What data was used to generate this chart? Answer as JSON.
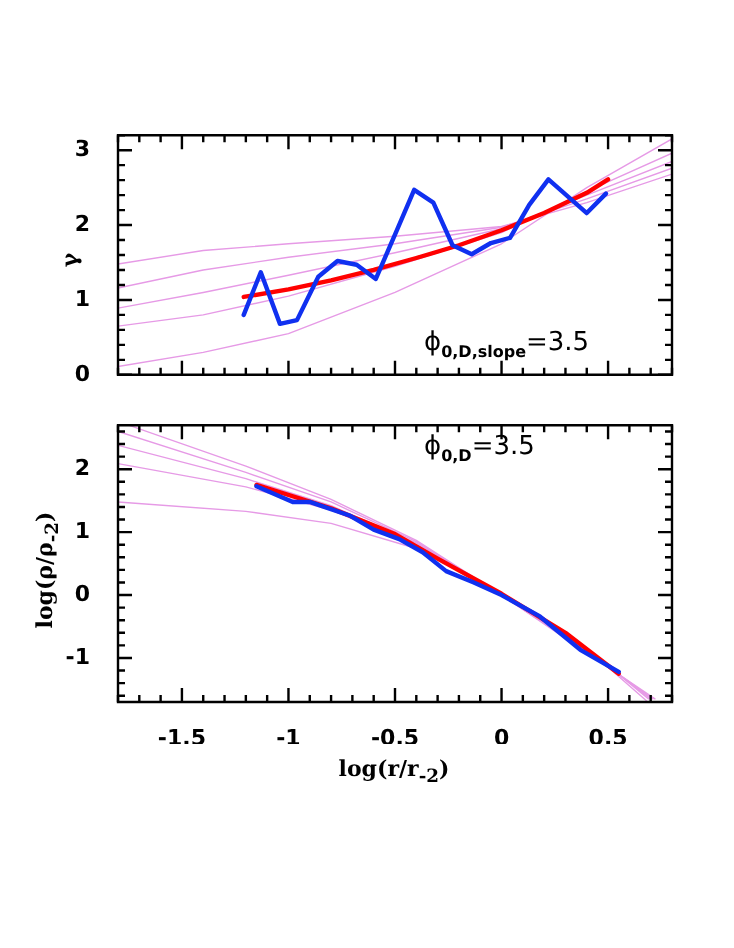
{
  "chart_data": [
    {
      "type": "line",
      "ylabel": "γ",
      "annotations": [
        "ϕ$_{0,D,slope}$=3.5"
      ],
      "xlim": [
        -1.8,
        0.8
      ],
      "ylim": [
        0,
        3.2
      ],
      "tick_labels": "y",
      "xticks": [
        {
          "value": -1.8,
          "label": null
        },
        {
          "value": -1.7,
          "label": null
        },
        {
          "value": -1.6,
          "label": null
        },
        {
          "value": -1.5,
          "label": null
        },
        {
          "value": -1.4,
          "label": null
        },
        {
          "value": -1.3,
          "label": null
        },
        {
          "value": -1.2,
          "label": null
        },
        {
          "value": -1.1,
          "label": null
        },
        {
          "value": -1,
          "label": null
        },
        {
          "value": -0.9,
          "label": null
        },
        {
          "value": -0.8,
          "label": null
        },
        {
          "value": -0.7,
          "label": null
        },
        {
          "value": -0.6,
          "label": null
        },
        {
          "value": -0.5,
          "label": null
        },
        {
          "value": -0.4,
          "label": null
        },
        {
          "value": -0.3,
          "label": null
        },
        {
          "value": -0.2,
          "label": null
        },
        {
          "value": -0.1,
          "label": null
        },
        {
          "value": 0,
          "label": null
        },
        {
          "value": 0.1,
          "label": null
        },
        {
          "value": 0.2,
          "label": null
        },
        {
          "value": 0.3,
          "label": null
        },
        {
          "value": 0.4,
          "label": null
        },
        {
          "value": 0.5,
          "label": null
        },
        {
          "value": 0.6,
          "label": null
        },
        {
          "value": 0.7,
          "label": null
        },
        {
          "value": 0.8,
          "label": null
        }
      ],
      "yticks": [
        0,
        {
          "value": 0.2,
          "label": null
        },
        {
          "value": 0.4,
          "label": null
        },
        {
          "value": 0.6,
          "label": null
        },
        {
          "value": 0.8,
          "label": null
        },
        1,
        {
          "value": 1.2,
          "label": null
        },
        {
          "value": 1.4,
          "label": null
        },
        {
          "value": 1.6,
          "label": null
        },
        {
          "value": 1.8,
          "label": null
        },
        2,
        {
          "value": 2.2,
          "label": null
        },
        {
          "value": 2.4,
          "label": null
        },
        {
          "value": 2.6,
          "label": null
        },
        {
          "value": 2.8,
          "label": null
        },
        3,
        {
          "value": 3.2,
          "label": null
        }
      ],
      "series": [
        {
          "color": "#e69ae6",
          "x": [
            -1.8,
            -1.4,
            -1,
            -0.5,
            0,
            0.4,
            0.8
          ],
          "values": [
            1.48,
            1.66,
            1.75,
            1.85,
            1.98,
            2.3,
            2.68
          ]
        },
        {
          "color": "#e69ae6",
          "x": [
            -1.8,
            -1.4,
            -1,
            -0.5,
            0,
            0.4,
            0.8
          ],
          "values": [
            1.16,
            1.4,
            1.57,
            1.75,
            1.97,
            2.35,
            2.76
          ]
        },
        {
          "color": "#e69ae6",
          "x": [
            -1.8,
            -1.4,
            -1,
            -0.5,
            0,
            0.4,
            0.8
          ],
          "values": [
            0.89,
            1.1,
            1.33,
            1.63,
            1.95,
            2.4,
            2.85
          ]
        },
        {
          "color": "#e69ae6",
          "x": [
            -1.8,
            -1.4,
            -1,
            -0.5,
            0,
            0.4,
            0.8
          ],
          "values": [
            0.65,
            0.8,
            1.05,
            1.45,
            1.9,
            2.45,
            2.96
          ]
        },
        {
          "color": "#e69ae6",
          "x": [
            -1.8,
            -1.4,
            -1,
            -0.5,
            0,
            0.4,
            0.8
          ],
          "values": [
            0.11,
            0.3,
            0.55,
            1.1,
            1.75,
            2.5,
            3.15
          ]
        },
        {
          "color": "#ff0000",
          "x": [
            -1.21,
            -1,
            -0.8,
            -0.6,
            -0.4,
            -0.2,
            0,
            0.2,
            0.4,
            0.5
          ],
          "values": [
            1.04,
            1.14,
            1.26,
            1.4,
            1.56,
            1.73,
            1.93,
            2.16,
            2.43,
            2.61
          ]
        },
        {
          "color": "#1030f0",
          "x": [
            -1.21,
            -1.13,
            -1.04,
            -0.96,
            -0.86,
            -0.77,
            -0.68,
            -0.59,
            -0.49,
            -0.41,
            -0.32,
            -0.23,
            -0.14,
            -0.05,
            0.04,
            0.13,
            0.22,
            0.3,
            0.4,
            0.49
          ],
          "values": [
            0.8,
            1.37,
            0.68,
            0.73,
            1.31,
            1.52,
            1.47,
            1.28,
            1.94,
            2.47,
            2.3,
            1.73,
            1.61,
            1.76,
            1.83,
            2.27,
            2.61,
            2.41,
            2.16,
            2.42
          ]
        }
      ]
    },
    {
      "type": "line",
      "xlabel": "log(r/r$_{-2}$)",
      "ylabel": "log(ρ/ρ$_{-2}$)",
      "annotations": [
        "ϕ$_{0,D}$=3.5"
      ],
      "xlim": [
        -1.8,
        0.8
      ],
      "ylim": [
        -1.7,
        2.7
      ],
      "xticks": [
        {
          "value": -1.8,
          "label": null
        },
        {
          "value": -1.7,
          "label": null
        },
        {
          "value": -1.6,
          "label": null
        },
        {
          "value": -1.5,
          "label": "-1.5"
        },
        {
          "value": -1.4,
          "label": null
        },
        {
          "value": -1.3,
          "label": null
        },
        {
          "value": -1.2,
          "label": null
        },
        {
          "value": -1.1,
          "label": null
        },
        {
          "value": -1,
          "label": "-1"
        },
        {
          "value": -0.9,
          "label": null
        },
        {
          "value": -0.8,
          "label": null
        },
        {
          "value": -0.7,
          "label": null
        },
        {
          "value": -0.6,
          "label": null
        },
        {
          "value": -0.5,
          "label": "-0.5"
        },
        {
          "value": -0.4,
          "label": null
        },
        {
          "value": -0.3,
          "label": null
        },
        {
          "value": -0.2,
          "label": null
        },
        {
          "value": -0.1,
          "label": null
        },
        {
          "value": 0,
          "label": "0"
        },
        {
          "value": 0.1,
          "label": null
        },
        {
          "value": 0.2,
          "label": null
        },
        {
          "value": 0.3,
          "label": null
        },
        {
          "value": 0.4,
          "label": null
        },
        {
          "value": 0.5,
          "label": "0.5"
        },
        {
          "value": 0.6,
          "label": null
        },
        {
          "value": 0.7,
          "label": null
        },
        {
          "value": 0.8,
          "label": null
        }
      ],
      "yticks": [
        {
          "value": -1.6,
          "label": null
        },
        {
          "value": -1.4,
          "label": null
        },
        {
          "value": -1.2,
          "label": null
        },
        -1,
        {
          "value": -0.8,
          "label": null
        },
        {
          "value": -0.6,
          "label": null
        },
        {
          "value": -0.4,
          "label": null
        },
        {
          "value": -0.2,
          "label": null
        },
        0,
        {
          "value": 0.2,
          "label": null
        },
        {
          "value": 0.4,
          "label": null
        },
        {
          "value": 0.6,
          "label": null
        },
        {
          "value": 0.8,
          "label": null
        },
        1,
        {
          "value": 1.2,
          "label": null
        },
        {
          "value": 1.4,
          "label": null
        },
        {
          "value": 1.6,
          "label": null
        },
        {
          "value": 1.8,
          "label": null
        },
        2,
        {
          "value": 2.2,
          "label": null
        },
        {
          "value": 2.4,
          "label": null
        },
        {
          "value": 2.6,
          "label": null
        }
      ],
      "series": [
        {
          "color": "#e69ae6",
          "x": [
            -1.8,
            -1.2,
            -0.8,
            -0.4,
            0,
            0.4,
            0.68
          ],
          "values": [
            1.48,
            1.33,
            1.14,
            0.74,
            0.03,
            -0.85,
            -1.68
          ]
        },
        {
          "color": "#e69ae6",
          "x": [
            -1.8,
            -1.2,
            -0.8,
            -0.4,
            0,
            0.4,
            0.69
          ],
          "values": [
            2.09,
            1.72,
            1.35,
            0.8,
            0,
            -0.85,
            -1.65
          ]
        },
        {
          "color": "#e69ae6",
          "x": [
            -1.8,
            -1.2,
            -0.8,
            -0.4,
            0,
            0.4,
            0.7
          ],
          "values": [
            2.38,
            1.85,
            1.42,
            0.83,
            0,
            -0.87,
            -1.65
          ]
        },
        {
          "color": "#e69ae6",
          "x": [
            -1.8,
            -1.2,
            -0.8,
            -0.4,
            0,
            0.4,
            0.71
          ],
          "values": [
            2.6,
            1.95,
            1.48,
            0.85,
            0,
            -0.9,
            -1.65
          ]
        },
        {
          "color": "#e69ae6",
          "x": [
            -1.75,
            -1.2,
            -0.8,
            -0.4,
            0,
            0.4,
            0.72
          ],
          "values": [
            2.7,
            2.05,
            1.52,
            0.87,
            0,
            -0.92,
            -1.65
          ]
        },
        {
          "color": "#ff0000",
          "x": [
            -1.15,
            -0.8,
            -0.5,
            -0.3,
            0,
            0.3,
            0.55
          ],
          "values": [
            1.75,
            1.38,
            0.97,
            0.58,
            0.02,
            -0.6,
            -1.25
          ]
        },
        {
          "color": "#1030f0",
          "x": [
            -1.15,
            -0.98,
            -0.9,
            -0.71,
            -0.6,
            -0.48,
            -0.37,
            -0.26,
            -0.13,
            0,
            0.18,
            0.37,
            0.55
          ],
          "values": [
            1.73,
            1.48,
            1.48,
            1.26,
            1.04,
            0.89,
            0.68,
            0.38,
            0.2,
            0,
            -0.34,
            -0.87,
            -1.22
          ]
        }
      ]
    }
  ]
}
